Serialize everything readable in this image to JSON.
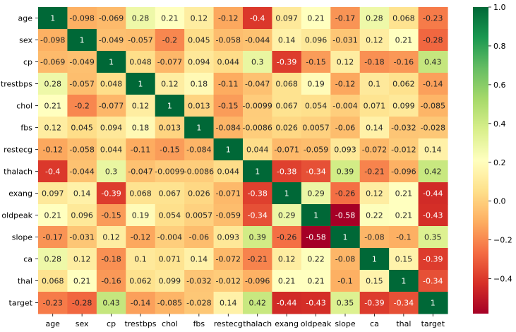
{
  "chart_data": {
    "type": "heatmap",
    "rows": [
      "age",
      "sex",
      "cp",
      "trestbps",
      "chol",
      "fbs",
      "restecg",
      "thalach",
      "exang",
      "oldpeak",
      "slope",
      "ca",
      "thal",
      "target"
    ],
    "columns": [
      "age",
      "sex",
      "cp",
      "trestbps",
      "chol",
      "fbs",
      "restecg",
      "thalach",
      "exang",
      "oldpeak",
      "slope",
      "ca",
      "thal",
      "target"
    ],
    "values": [
      [
        1,
        -0.098,
        -0.069,
        0.28,
        0.21,
        0.12,
        -0.12,
        -0.4,
        0.097,
        0.21,
        -0.17,
        0.28,
        0.068,
        -0.23
      ],
      [
        -0.098,
        1,
        -0.049,
        -0.057,
        -0.2,
        0.045,
        -0.058,
        -0.044,
        0.14,
        0.096,
        -0.031,
        0.12,
        0.21,
        -0.28
      ],
      [
        -0.069,
        -0.049,
        1,
        0.048,
        -0.077,
        0.094,
        0.044,
        0.3,
        -0.39,
        -0.15,
        0.12,
        -0.18,
        -0.16,
        0.43
      ],
      [
        0.28,
        -0.057,
        0.048,
        1,
        0.12,
        0.18,
        -0.11,
        -0.047,
        0.068,
        0.19,
        -0.12,
        0.1,
        0.062,
        -0.14
      ],
      [
        0.21,
        -0.2,
        -0.077,
        0.12,
        1,
        0.013,
        -0.15,
        -0.0099,
        0.067,
        0.054,
        -0.004,
        0.071,
        0.099,
        -0.085
      ],
      [
        0.12,
        0.045,
        0.094,
        0.18,
        0.013,
        1,
        -0.084,
        -0.0086,
        0.026,
        0.0057,
        -0.06,
        0.14,
        -0.032,
        -0.028
      ],
      [
        -0.12,
        -0.058,
        0.044,
        -0.11,
        -0.15,
        -0.084,
        1,
        0.044,
        -0.071,
        -0.059,
        0.093,
        -0.072,
        -0.012,
        0.14
      ],
      [
        -0.4,
        -0.044,
        0.3,
        -0.047,
        -0.0099,
        -0.0086,
        0.044,
        1,
        -0.38,
        -0.34,
        0.39,
        -0.21,
        -0.096,
        0.42
      ],
      [
        0.097,
        0.14,
        -0.39,
        0.068,
        0.067,
        0.026,
        -0.071,
        -0.38,
        1,
        0.29,
        -0.26,
        0.12,
        0.21,
        -0.44
      ],
      [
        0.21,
        0.096,
        -0.15,
        0.19,
        0.054,
        0.0057,
        -0.059,
        -0.34,
        0.29,
        1,
        -0.58,
        0.22,
        0.21,
        -0.43
      ],
      [
        -0.17,
        -0.031,
        0.12,
        -0.12,
        -0.004,
        -0.06,
        0.093,
        0.39,
        -0.26,
        -0.58,
        1,
        -0.08,
        -0.1,
        0.35
      ],
      [
        0.28,
        0.12,
        -0.18,
        0.1,
        0.071,
        0.14,
        -0.072,
        -0.21,
        0.12,
        0.22,
        -0.08,
        1,
        0.15,
        -0.39
      ],
      [
        0.068,
        0.21,
        -0.16,
        0.062,
        0.099,
        -0.032,
        -0.012,
        -0.096,
        0.21,
        0.21,
        -0.1,
        0.15,
        1,
        -0.34
      ],
      [
        -0.23,
        -0.28,
        0.43,
        -0.14,
        -0.085,
        -0.028,
        0.14,
        0.42,
        -0.44,
        -0.43,
        0.35,
        -0.39,
        -0.34,
        1
      ]
    ],
    "colormap": "RdYlGn",
    "vmin": -0.58,
    "vmax": 1,
    "colorbar_ticks": [
      "1.0",
      "0.8",
      "0.6",
      "0.4",
      "0.2",
      "0.0",
      "−0.2",
      "−0.4"
    ],
    "colorbar_tick_values": [
      1.0,
      0.8,
      0.6,
      0.4,
      0.2,
      0.0,
      -0.2,
      -0.4
    ],
    "annotations": true,
    "title": "",
    "xlabel": "",
    "ylabel": ""
  }
}
